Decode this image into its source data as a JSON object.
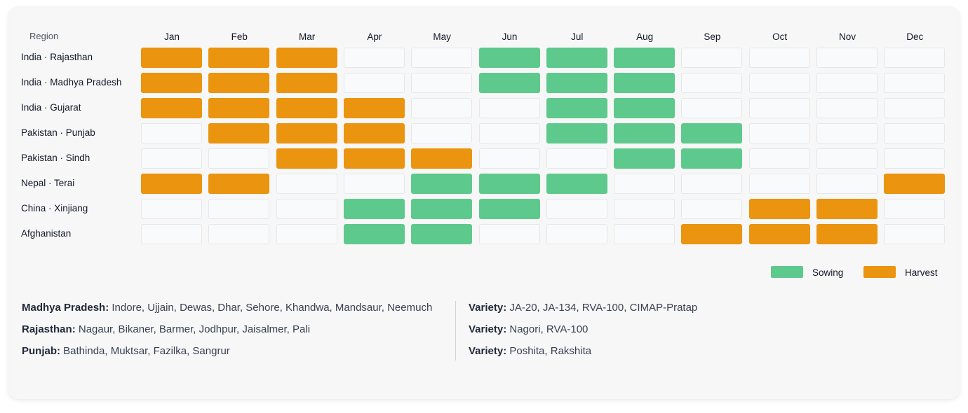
{
  "chart_data": {
    "type": "heatmap",
    "row_header": "Region",
    "months": [
      "Jan",
      "Feb",
      "Mar",
      "Apr",
      "May",
      "Jun",
      "Jul",
      "Aug",
      "Sep",
      "Oct",
      "Nov",
      "Dec"
    ],
    "rows": [
      {
        "label": "India · Rajasthan",
        "cells": [
          "harvest",
          "harvest",
          "harvest",
          "",
          "",
          "sowing",
          "sowing",
          "sowing",
          "",
          "",
          "",
          ""
        ]
      },
      {
        "label": "India · Madhya Pradesh",
        "cells": [
          "harvest",
          "harvest",
          "harvest",
          "",
          "",
          "sowing",
          "sowing",
          "sowing",
          "",
          "",
          "",
          ""
        ]
      },
      {
        "label": "India · Gujarat",
        "cells": [
          "harvest",
          "harvest",
          "harvest",
          "harvest",
          "",
          "",
          "sowing",
          "sowing",
          "",
          "",
          "",
          ""
        ]
      },
      {
        "label": "Pakistan · Punjab",
        "cells": [
          "",
          "harvest",
          "harvest",
          "harvest",
          "",
          "",
          "sowing",
          "sowing",
          "sowing",
          "",
          "",
          ""
        ]
      },
      {
        "label": "Pakistan · Sindh",
        "cells": [
          "",
          "",
          "harvest",
          "harvest",
          "harvest",
          "",
          "",
          "sowing",
          "sowing",
          "",
          "",
          ""
        ]
      },
      {
        "label": "Nepal · Terai",
        "cells": [
          "harvest",
          "harvest",
          "",
          "",
          "sowing",
          "sowing",
          "sowing",
          "",
          "",
          "",
          "",
          "harvest"
        ]
      },
      {
        "label": "China · Xinjiang",
        "cells": [
          "",
          "",
          "",
          "sowing",
          "sowing",
          "sowing",
          "",
          "",
          "",
          "harvest",
          "harvest",
          ""
        ]
      },
      {
        "label": "Afghanistan",
        "cells": [
          "",
          "",
          "",
          "sowing",
          "sowing",
          "",
          "",
          "",
          "harvest",
          "harvest",
          "harvest",
          ""
        ]
      }
    ],
    "legend": [
      {
        "key": "sowing",
        "label": "Sowing",
        "color": "#5ec98c"
      },
      {
        "key": "harvest",
        "label": "Harvest",
        "color": "#eb940f"
      }
    ],
    "legend_position": "bottom-right"
  },
  "notes": {
    "regions": [
      {
        "key": "Madhya Pradesh:",
        "value": " Indore, Ujjain, Dewas, Dhar, Sehore, Khandwa, Mandsaur, Neemuch"
      },
      {
        "key": "Rajasthan:",
        "value": " Nagaur, Bikaner, Barmer, Jodhpur, Jaisalmer, Pali"
      },
      {
        "key": "Punjab:",
        "value": " Bathinda, Muktsar, Fazilka, Sangrur"
      }
    ],
    "varieties": [
      {
        "key": "Variety:",
        "value": " JA-20, JA-134, RVA-100, CIMAP-Pratap"
      },
      {
        "key": "Variety:",
        "value": " Nagori, RVA-100"
      },
      {
        "key": "Variety:",
        "value": " Poshita, Rakshita"
      }
    ]
  }
}
